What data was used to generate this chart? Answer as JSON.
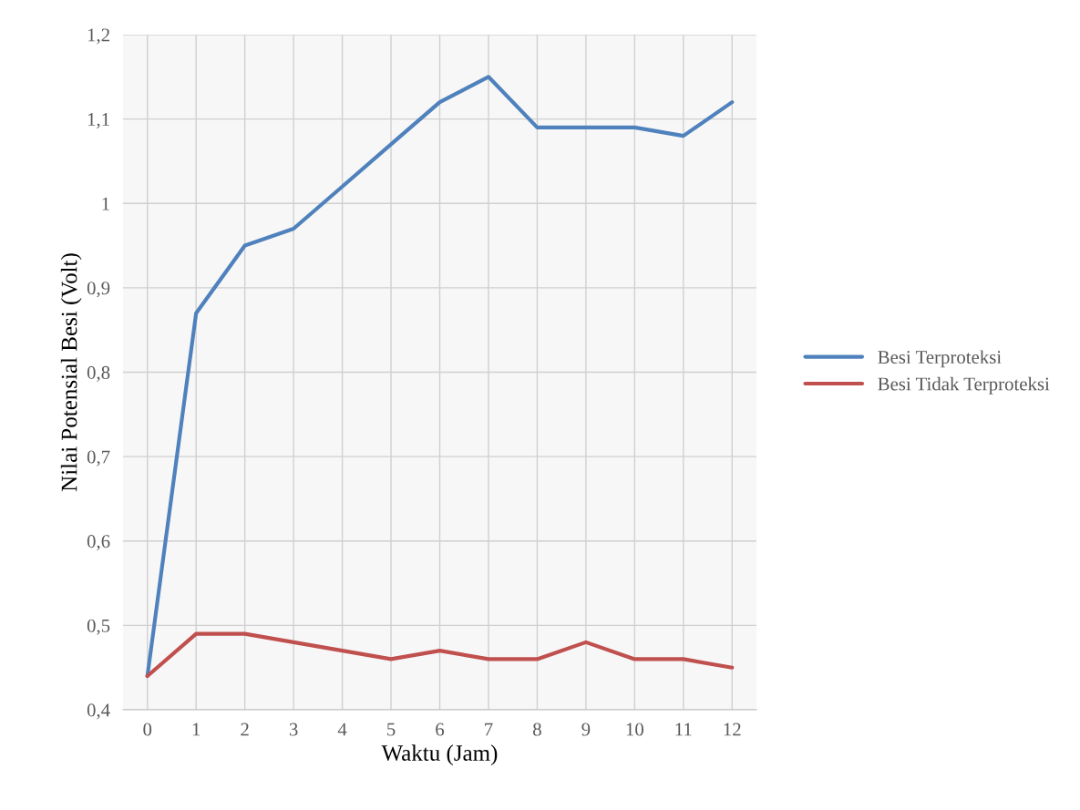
{
  "chart_data": {
    "type": "line",
    "xlabel": "Waktu (Jam)",
    "ylabel": "Nilai Potensial Besi (Volt)",
    "categories": [
      "0",
      "1",
      "2",
      "3",
      "4",
      "5",
      "6",
      "7",
      "8",
      "9",
      "10",
      "11",
      "12"
    ],
    "series": [
      {
        "name": "Besi Terproteksi",
        "color": "#4f81bd",
        "values": [
          0.44,
          0.87,
          0.95,
          0.97,
          1.02,
          1.07,
          1.12,
          1.15,
          1.09,
          1.09,
          1.09,
          1.08,
          1.12
        ]
      },
      {
        "name": "Besi Tidak Terproteksi",
        "color": "#c0504d",
        "values": [
          0.44,
          0.49,
          0.49,
          0.48,
          0.47,
          0.46,
          0.47,
          0.46,
          0.46,
          0.48,
          0.46,
          0.46,
          0.45
        ]
      }
    ],
    "ylim": [
      0.4,
      1.2
    ],
    "yticks": [
      {
        "value": 0.4,
        "label": "0,4"
      },
      {
        "value": 0.5,
        "label": "0,5"
      },
      {
        "value": 0.6,
        "label": "0,6"
      },
      {
        "value": 0.7,
        "label": "0,7"
      },
      {
        "value": 0.8,
        "label": "0,8"
      },
      {
        "value": 0.9,
        "label": "0,9"
      },
      {
        "value": 1,
        "label": "1"
      },
      {
        "value": 1.1,
        "label": "1,1"
      },
      {
        "value": 1.2,
        "label": "1,2"
      }
    ],
    "grid": true,
    "legend": "right",
    "marker": "none",
    "line_style": "solid"
  }
}
